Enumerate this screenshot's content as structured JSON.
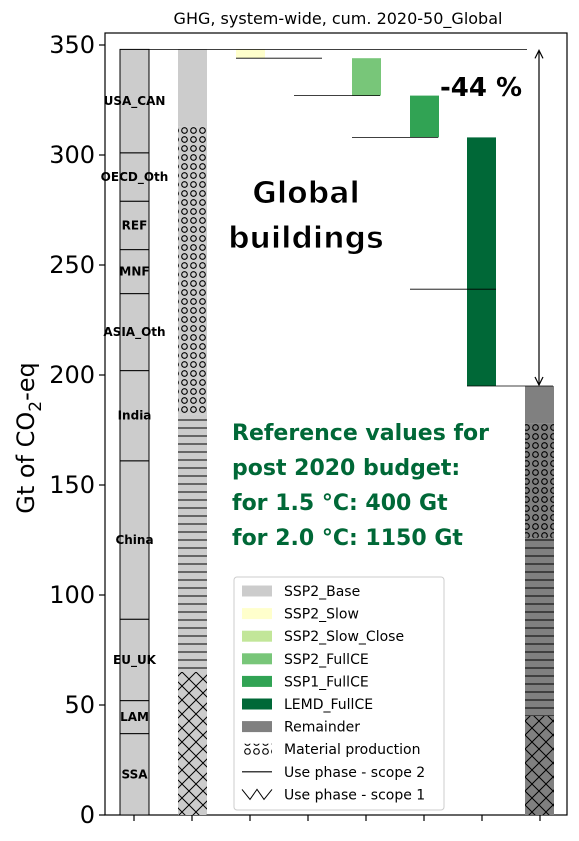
{
  "chart_data": {
    "type": "bar",
    "subtype": "waterfall",
    "title": "GHG, system-wide, cum. 2020-50_Global",
    "ylabel_main": "Gt of CO",
    "ylabel_sub": "2",
    "ylabel_tail": "-eq",
    "ylim": [
      0,
      350
    ],
    "yticks": [
      "0",
      "50",
      "100",
      "150",
      "200",
      "250",
      "300",
      "350"
    ],
    "ytick_values": [
      0,
      50,
      100,
      150,
      200,
      250,
      300,
      350
    ],
    "grid": false,
    "legend_position": "lower-center",
    "overlay_text": [
      "Global",
      "buildings"
    ],
    "reduction_label": "-44 %",
    "reference_note": [
      "Reference values for",
      "post 2020 budget:",
      "for 1.5 °C: 400 Gt",
      "for 2.0 °C: 1150 Gt"
    ],
    "regions": [
      {
        "name": "SSA",
        "from": 0,
        "to": 37
      },
      {
        "name": "LAM",
        "from": 37,
        "to": 52
      },
      {
        "name": "EU_UK",
        "from": 52,
        "to": 89
      },
      {
        "name": "China",
        "from": 89,
        "to": 161
      },
      {
        "name": "India",
        "from": 161,
        "to": 202
      },
      {
        "name": "ASIA_Oth",
        "from": 202,
        "to": 237
      },
      {
        "name": "MNF",
        "from": 237,
        "to": 257
      },
      {
        "name": "REF",
        "from": 257,
        "to": 279
      },
      {
        "name": "OECD_Oth",
        "from": 279,
        "to": 301
      },
      {
        "name": "USA_CAN",
        "from": 301,
        "to": 348
      }
    ],
    "base_stack": {
      "scope1": 65,
      "scope2": 117,
      "material": 131,
      "remainder": 35,
      "total": 348
    },
    "steps": [
      {
        "name": "SSP2_Slow",
        "from": 344,
        "to": 348,
        "color": "#ffffcc"
      },
      {
        "name": "SSP2_Slow_Close",
        "from": 344,
        "to": 344,
        "color": "#c2e699"
      },
      {
        "name": "SSP2_FullCE",
        "from": 327,
        "to": 344,
        "color": "#78c679"
      },
      {
        "name": "SSP1_FullCE",
        "from": 308,
        "to": 327,
        "color": "#31a354"
      },
      {
        "name": "LEMD_FullCE",
        "from": 239,
        "to": 308,
        "color": "#006837"
      }
    ],
    "extra_step": {
      "from": 195,
      "to": 239,
      "color": "#006837"
    },
    "final_stack": {
      "scope1": 45,
      "scope2": 81,
      "material": 52,
      "remainder": 17,
      "total": 195
    },
    "legend": [
      {
        "label": "SSP2_Base",
        "kind": "fill",
        "color": "#cccccc"
      },
      {
        "label": "SSP2_Slow",
        "kind": "fill",
        "color": "#ffffcc"
      },
      {
        "label": "SSP2_Slow_Close",
        "kind": "fill",
        "color": "#c2e699"
      },
      {
        "label": "SSP2_FullCE",
        "kind": "fill",
        "color": "#78c679"
      },
      {
        "label": "SSP1_FullCE",
        "kind": "fill",
        "color": "#31a354"
      },
      {
        "label": "LEMD_FullCE",
        "kind": "fill",
        "color": "#006837"
      },
      {
        "label": "Remainder",
        "kind": "fill",
        "color": "#808080"
      },
      {
        "label": "Material production",
        "kind": "circles"
      },
      {
        "label": "Use phase - scope 2",
        "kind": "line"
      },
      {
        "label": "Use phase - scope 1",
        "kind": "cross"
      }
    ],
    "colors": {
      "base": "#cccccc",
      "remainder": "#808080",
      "note_green": "#006837"
    }
  }
}
